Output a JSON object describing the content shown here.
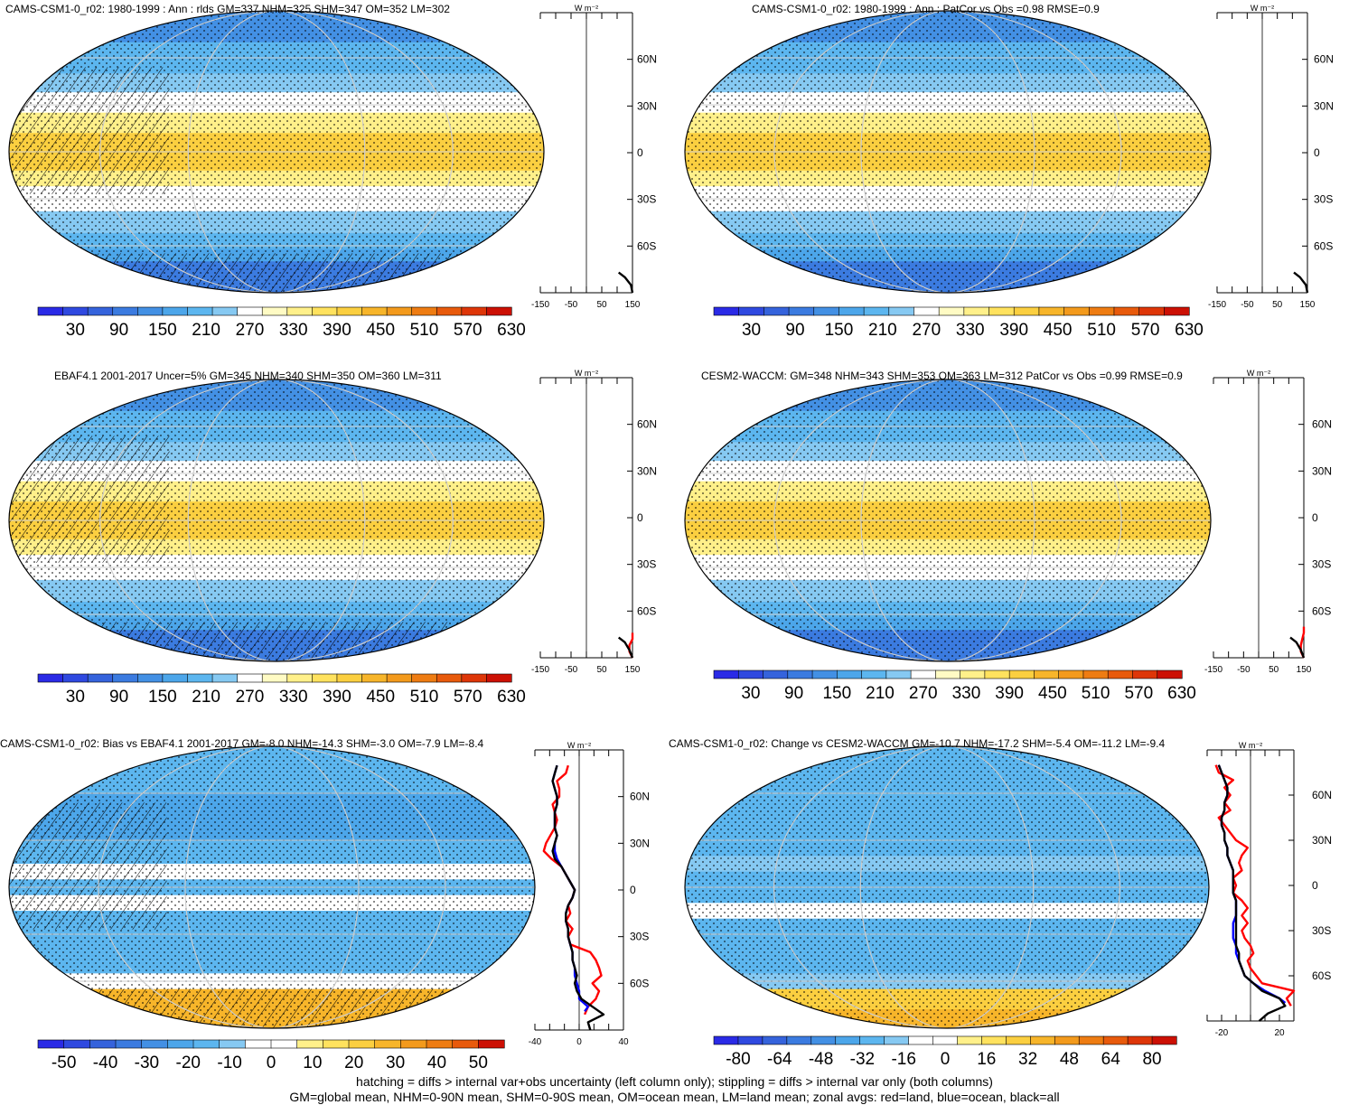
{
  "footnote": {
    "line1": "hatching = diffs > internal var+obs uncertainty (left column only); stippling = diffs > internal var only (both columns)",
    "line2": "GM=global mean, NHM=0-90N mean, SHM=0-90S mean, OM=ocean mean, LM=land mean; zonal avgs: red=land, blue=ocean, black=all"
  },
  "colors": {
    "abs_scale": [
      "#2a2ae6",
      "#2f49e0",
      "#3563dc",
      "#3b7be0",
      "#4390e4",
      "#4ca6ea",
      "#5cb6ef",
      "#86c9f2",
      "#ffffff",
      "#fffbc4",
      "#fff08a",
      "#ffe25e",
      "#fbcf40",
      "#f7b52a",
      "#f39a1c",
      "#ee7c12",
      "#e85a0c",
      "#de3608",
      "#cc1004"
    ],
    "diff_scale": [
      "#2a2ae6",
      "#2f49e0",
      "#3563dc",
      "#3b7be0",
      "#4390e4",
      "#4ca6ea",
      "#5cb6ef",
      "#86c9f2",
      "#ffffff",
      "#ffffff",
      "#fff08a",
      "#ffe25e",
      "#fbcf40",
      "#f7b52a",
      "#f39a1c",
      "#ee7c12",
      "#e85a0c",
      "#cc1004"
    ],
    "change_scale": [
      "#2a2ae6",
      "#2f49e0",
      "#3563dc",
      "#3b7be0",
      "#4390e4",
      "#4ca6ea",
      "#5cb6ef",
      "#86c9f2",
      "#ffffff",
      "#ffffff",
      "#fff08a",
      "#ffe25e",
      "#fbcf40",
      "#f7b52a",
      "#f39a1c",
      "#ee7c12",
      "#e85a0c",
      "#de3608",
      "#cc1004"
    ],
    "land_line": "#ff0000",
    "ocean_line": "#0000ff",
    "all_line": "#000000"
  },
  "chart_data": [
    {
      "type": "heatmap",
      "title": "CAMS-CSM1-0_r02: 1980-1999 : Ann : rlds GM=337 NHM=325 SHM=347 OM=352 LM=302",
      "colorbar_labels": [
        "30",
        "90",
        "150",
        "210",
        "270",
        "330",
        "390",
        "450",
        "510",
        "570",
        "630"
      ],
      "zonal_xticks": [
        "-150",
        "-50",
        "50",
        "150"
      ],
      "zonal_xlim": [
        -150,
        150
      ],
      "lat_ticks": [
        "60N",
        "30N",
        "0",
        "30S",
        "60S"
      ],
      "zonal_unit": "W m⁻²",
      "hatching": true,
      "zonal_series": [
        {
          "name": "all",
          "lat": [
            -90,
            -85,
            -80,
            -77
          ],
          "values": [
            150,
            145,
            125,
            105
          ]
        }
      ]
    },
    {
      "type": "heatmap",
      "title": "CAMS-CSM1-0_r02: 1980-1999 : Ann : PatCor vs Obs =0.98 RMSE=0.9",
      "colorbar_labels": [
        "30",
        "90",
        "150",
        "210",
        "270",
        "330",
        "390",
        "450",
        "510",
        "570",
        "630"
      ],
      "zonal_xticks": [
        "-150",
        "-50",
        "50",
        "150"
      ],
      "zonal_xlim": [
        -150,
        150
      ],
      "lat_ticks": [
        "60N",
        "30N",
        "0",
        "30S",
        "60S"
      ],
      "zonal_unit": "W m⁻²",
      "hatching": false,
      "zonal_series": [
        {
          "name": "all",
          "lat": [
            -90,
            -85,
            -80,
            -77
          ],
          "values": [
            150,
            145,
            125,
            105
          ]
        }
      ]
    },
    {
      "type": "heatmap",
      "title": "EBAF4.1 2001-2017 Uncer=5% GM=345 NHM=340 SHM=350 OM=360 LM=311",
      "colorbar_labels": [
        "30",
        "90",
        "150",
        "210",
        "270",
        "330",
        "390",
        "450",
        "510",
        "570",
        "630"
      ],
      "zonal_xticks": [
        "-150",
        "-50",
        "50",
        "150"
      ],
      "zonal_xlim": [
        -150,
        150
      ],
      "lat_ticks": [
        "60N",
        "30N",
        "0",
        "30S",
        "60S"
      ],
      "zonal_unit": "W m⁻²",
      "hatching": true,
      "zonal_series": [
        {
          "name": "land",
          "lat": [
            -90,
            -86,
            -82,
            -78,
            -74
          ],
          "values": [
            150,
            140,
            140,
            150,
            150
          ]
        },
        {
          "name": "all",
          "lat": [
            -90,
            -85,
            -80,
            -77
          ],
          "values": [
            150,
            140,
            125,
            105
          ]
        }
      ]
    },
    {
      "type": "heatmap",
      "title": "CESM2-WACCM: GM=348 NHM=343 SHM=353 OM=363 LM=312 PatCor vs Obs =0.99 RMSE=0.9",
      "colorbar_labels": [
        "30",
        "90",
        "150",
        "210",
        "270",
        "330",
        "390",
        "450",
        "510",
        "570",
        "630"
      ],
      "zonal_xticks": [
        "-150",
        "-50",
        "50",
        "150"
      ],
      "zonal_xlim": [
        -150,
        150
      ],
      "lat_ticks": [
        "60N",
        "30N",
        "0",
        "30S",
        "60S"
      ],
      "zonal_unit": "W m⁻²",
      "hatching": false,
      "zonal_series": [
        {
          "name": "land",
          "lat": [
            -90,
            -86,
            -82,
            -78,
            -74,
            -70
          ],
          "values": [
            150,
            140,
            140,
            145,
            150,
            150
          ]
        },
        {
          "name": "all",
          "lat": [
            -90,
            -85,
            -80,
            -77
          ],
          "values": [
            150,
            140,
            125,
            105
          ]
        }
      ]
    },
    {
      "type": "heatmap",
      "title": "CAMS-CSM1-0_r02: Bias vs EBAF4.1 2001-2017 GM=-8.0 NHM=-14.3 SHM=-3.0 OM=-7.9 LM=-8.4",
      "colorbar_labels": [
        "-50",
        "-40",
        "-30",
        "-20",
        "-10",
        "0",
        "10",
        "20",
        "30",
        "40",
        "50"
      ],
      "zonal_xticks": [
        "-40",
        "0",
        "40"
      ],
      "zonal_xlim": [
        -40,
        40
      ],
      "lat_ticks": [
        "60N",
        "30N",
        "0",
        "30S",
        "60S"
      ],
      "zonal_unit": "W m⁻²",
      "hatching": true,
      "zonal_series": [
        {
          "name": "land",
          "lat": [
            -80,
            -75,
            -70,
            -65,
            -60,
            -55,
            -50,
            -45,
            -40,
            -35,
            -30,
            -25,
            -20,
            -15,
            -10,
            -5,
            0,
            5,
            10,
            15,
            20,
            25,
            30,
            35,
            40,
            45,
            50,
            55,
            60,
            65,
            70,
            75,
            80
          ],
          "values": [
            5,
            8,
            15,
            18,
            12,
            20,
            18,
            15,
            10,
            -8,
            -10,
            -6,
            -12,
            -8,
            -10,
            -6,
            -4,
            -8,
            -12,
            -16,
            -25,
            -32,
            -30,
            -26,
            -22,
            -20,
            -22,
            -24,
            -18,
            -18,
            -20,
            -12,
            -10
          ]
        },
        {
          "name": "ocean",
          "lat": [
            -78,
            -75,
            -70,
            -65,
            -60,
            -55,
            -50,
            -45,
            -40,
            -35,
            -30,
            -25,
            -20,
            -15,
            -10,
            -5,
            0,
            5,
            10,
            15,
            20,
            25,
            30,
            35,
            40,
            45,
            50,
            55,
            60,
            65,
            70,
            75,
            80
          ],
          "values": [
            5,
            8,
            0,
            0,
            -2,
            -4,
            -4,
            -6,
            -6,
            -8,
            -10,
            -10,
            -12,
            -12,
            -10,
            -6,
            -4,
            -8,
            -12,
            -16,
            -20,
            -22,
            -22,
            -20,
            -22,
            -22,
            -22,
            -20,
            -20,
            -22,
            -24,
            -22,
            -20
          ]
        },
        {
          "name": "all",
          "lat": [
            -90,
            -85,
            -80,
            -75,
            -70,
            -65,
            -60,
            -55,
            -50,
            -45,
            -40,
            -35,
            -30,
            -25,
            -20,
            -15,
            -10,
            -5,
            0,
            5,
            10,
            15,
            20,
            25,
            30,
            35,
            40,
            45,
            50,
            55,
            60,
            65,
            70,
            75,
            80
          ],
          "values": [
            10,
            8,
            22,
            12,
            2,
            -2,
            -4,
            -2,
            -4,
            -6,
            -6,
            -8,
            -10,
            -10,
            -12,
            -12,
            -10,
            -6,
            -4,
            -8,
            -12,
            -16,
            -22,
            -24,
            -22,
            -20,
            -22,
            -22,
            -22,
            -20,
            -20,
            -22,
            -24,
            -22,
            -20
          ]
        }
      ]
    },
    {
      "type": "heatmap",
      "title": "CAMS-CSM1-0_r02: Change vs CESM2-WACCM GM=-10.7 NHM=-17.2 SHM=-5.4 OM=-11.2 LM=-9.4",
      "colorbar_labels": [
        "-80",
        "-64",
        "-48",
        "-32",
        "-16",
        "0",
        "16",
        "32",
        "48",
        "64",
        "80"
      ],
      "zonal_xticks": [
        "-20",
        "20"
      ],
      "zonal_xlim": [
        -30,
        30
      ],
      "lat_ticks": [
        "60N",
        "30N",
        "0",
        "30S",
        "60S"
      ],
      "zonal_unit": "W m⁻²",
      "hatching": false,
      "zonal_series": [
        {
          "name": "land",
          "lat": [
            -80,
            -75,
            -70,
            -65,
            -60,
            -55,
            -50,
            -45,
            -40,
            -35,
            -30,
            -25,
            -20,
            -15,
            -10,
            -5,
            0,
            5,
            10,
            15,
            20,
            25,
            30,
            35,
            40,
            45,
            50,
            55,
            60,
            65,
            70,
            75,
            80
          ],
          "values": [
            28,
            25,
            30,
            8,
            4,
            0,
            -2,
            2,
            0,
            -4,
            -6,
            -2,
            -6,
            -2,
            -6,
            -12,
            -10,
            -12,
            -6,
            -8,
            -6,
            -2,
            -10,
            -14,
            -18,
            -22,
            -14,
            -18,
            -14,
            -18,
            -12,
            -22,
            -24
          ]
        },
        {
          "name": "ocean",
          "lat": [
            -78,
            -75,
            -70,
            -65,
            -60,
            -55,
            -50,
            -45,
            -40,
            -35,
            -30,
            -25,
            -20,
            -15,
            -10,
            -5,
            0,
            5,
            10,
            15,
            20,
            25,
            30,
            35,
            40,
            45,
            50,
            55,
            60,
            65,
            70,
            75,
            80
          ],
          "values": [
            24,
            20,
            10,
            2,
            -4,
            -6,
            -8,
            -10,
            -10,
            -12,
            -12,
            -12,
            -10,
            -10,
            -10,
            -12,
            -12,
            -12,
            -12,
            -14,
            -16,
            -16,
            -18,
            -18,
            -20,
            -20,
            -18,
            -18,
            -16,
            -16,
            -18,
            -20,
            -22
          ]
        },
        {
          "name": "all",
          "lat": [
            -90,
            -85,
            -80,
            -75,
            -70,
            -65,
            -60,
            -55,
            -50,
            -45,
            -40,
            -35,
            -30,
            -25,
            -20,
            -15,
            -10,
            -5,
            0,
            5,
            10,
            15,
            20,
            25,
            30,
            35,
            40,
            45,
            50,
            55,
            60,
            65,
            70,
            75,
            80
          ],
          "values": [
            6,
            12,
            24,
            20,
            8,
            2,
            -4,
            -6,
            -8,
            -8,
            -10,
            -10,
            -10,
            -10,
            -10,
            -10,
            -10,
            -12,
            -12,
            -12,
            -12,
            -14,
            -16,
            -16,
            -18,
            -18,
            -20,
            -20,
            -18,
            -18,
            -16,
            -16,
            -18,
            -20,
            -22
          ]
        }
      ]
    }
  ]
}
